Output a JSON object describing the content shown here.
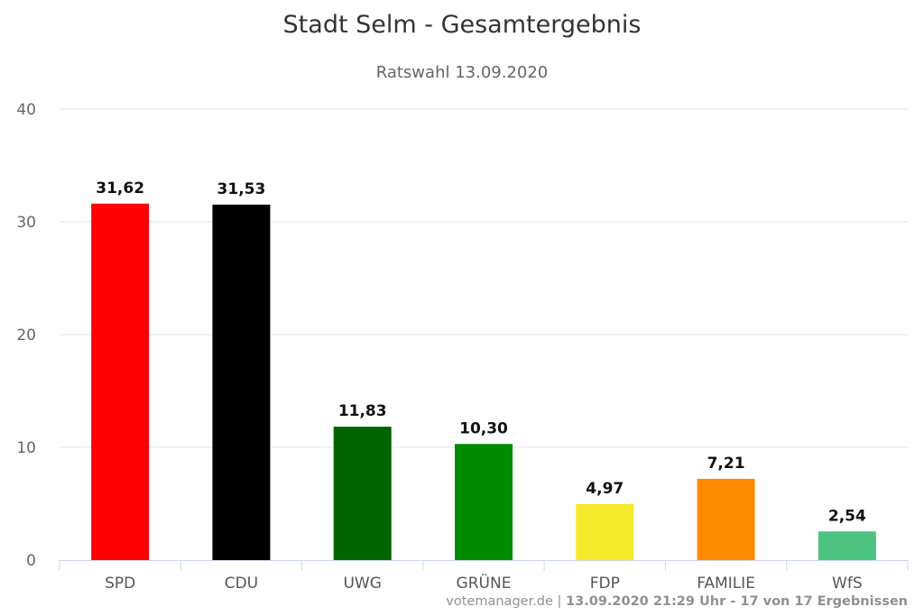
{
  "header": {
    "title": "Stadt Selm - Gesamtergebnis",
    "subtitle": "Ratswahl 13.09.2020"
  },
  "credits": {
    "source": "votemanager.de",
    "status": "13.09.2020 21:29 Uhr - 17 von 17 Ergebnissen"
  },
  "chart_data": {
    "type": "bar",
    "title": "Stadt Selm - Gesamtergebnis",
    "subtitle": "Ratswahl 13.09.2020",
    "categories": [
      "SPD",
      "CDU",
      "UWG",
      "GRÜNE",
      "FDP",
      "FAMILIE",
      "WfS"
    ],
    "values": [
      31.62,
      31.53,
      11.83,
      10.3,
      4.97,
      7.21,
      2.54
    ],
    "value_labels": [
      "31,62",
      "31,53",
      "11,83",
      "10,30",
      "4,97",
      "7,21",
      "2,54"
    ],
    "colors": [
      "#ff0000",
      "#000000",
      "#006400",
      "#008a00",
      "#f7e92c",
      "#ff8c00",
      "#4dc47f"
    ],
    "ylim": [
      0,
      40
    ],
    "yticks": [
      0,
      10,
      20,
      30,
      40
    ],
    "grid": true,
    "legend": false
  }
}
